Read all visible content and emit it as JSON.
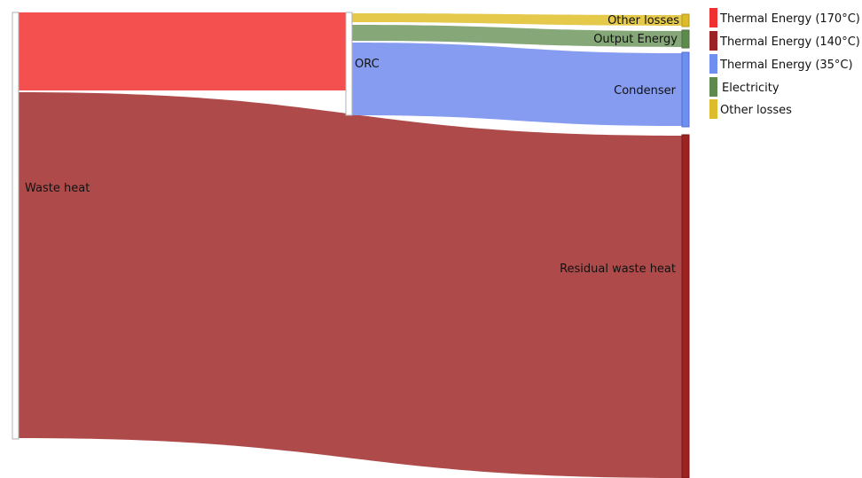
{
  "chart_data": {
    "type": "sankey",
    "nodes": [
      {
        "id": "waste_heat",
        "label": "Waste heat"
      },
      {
        "id": "orc",
        "label": "ORC"
      },
      {
        "id": "other_losses",
        "label": "Other losses"
      },
      {
        "id": "output_energy",
        "label": "Output Energy"
      },
      {
        "id": "condenser",
        "label": "Condenser"
      },
      {
        "id": "residual",
        "label": "Residual waste heat"
      }
    ],
    "links": [
      {
        "source": "waste_heat",
        "target": "orc",
        "value": 18,
        "legend": "Thermal Energy (170°C)"
      },
      {
        "source": "waste_heat",
        "target": "residual",
        "value": 80,
        "legend": "Thermal Energy (140°C)"
      },
      {
        "source": "orc",
        "target": "other_losses",
        "value": 2.5,
        "legend": "Other losses"
      },
      {
        "source": "orc",
        "target": "output_energy",
        "value": 3.5,
        "legend": "Electricity"
      },
      {
        "source": "orc",
        "target": "condenser",
        "value": 17,
        "legend": "Thermal Energy (35°C)"
      }
    ],
    "legend": [
      {
        "label": "Thermal Energy (170°C)",
        "color": "#f03030"
      },
      {
        "label": "Thermal Energy (140°C)",
        "color": "#9b2323"
      },
      {
        "label": "Thermal Energy (35°C)",
        "color": "#6e8ff0"
      },
      {
        "label": "Electricity",
        "color": "#5e8a4e"
      },
      {
        "label": "Other losses",
        "color": "#dcbc2a"
      }
    ],
    "legend_position": "top-right"
  },
  "colors": {
    "link_hot": "#f55050",
    "link_warm": "#ae4b4a",
    "link_cold": "#869cf0",
    "link_electric": "#86a878",
    "link_losses": "#e4c94a",
    "node_outline": "#b0b0b0"
  }
}
